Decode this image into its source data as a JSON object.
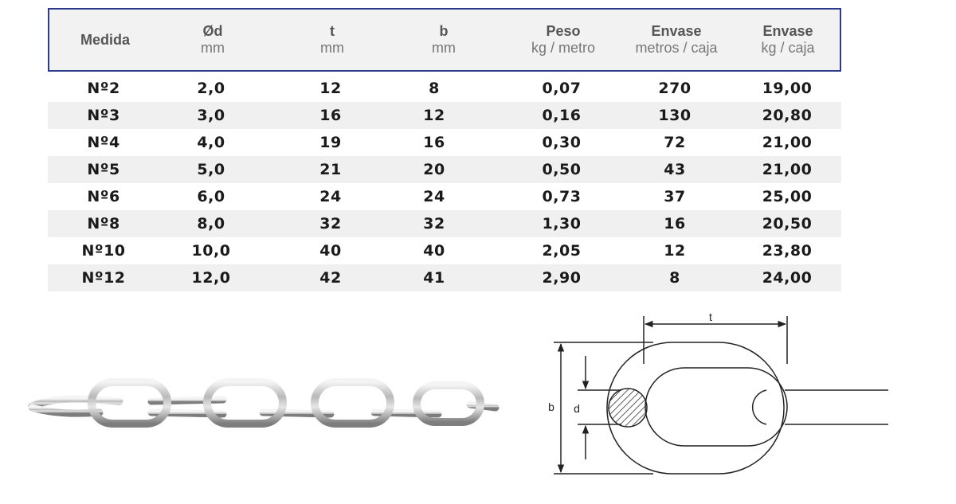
{
  "table": {
    "headers": [
      {
        "main": "Medida",
        "unit": ""
      },
      {
        "main": "Ød",
        "unit": "mm"
      },
      {
        "main": "t",
        "unit": "mm"
      },
      {
        "main": "b",
        "unit": "mm"
      },
      {
        "main": "Peso",
        "unit": "kg / metro"
      },
      {
        "main": "Envase",
        "unit": "metros / caja"
      },
      {
        "main": "Envase",
        "unit": "kg / caja"
      }
    ],
    "rows": [
      [
        "Nº2",
        "2,0",
        "12",
        "8",
        "0,07",
        "270",
        "19,00"
      ],
      [
        "Nº3",
        "3,0",
        "16",
        "12",
        "0,16",
        "130",
        "20,80"
      ],
      [
        "Nº4",
        "4,0",
        "19",
        "16",
        "0,30",
        "72",
        "21,00"
      ],
      [
        "Nº5",
        "5,0",
        "21",
        "20",
        "0,50",
        "43",
        "21,00"
      ],
      [
        "Nº6",
        "6,0",
        "24",
        "24",
        "0,73",
        "37",
        "25,00"
      ],
      [
        "Nº8",
        "8,0",
        "32",
        "32",
        "1,30",
        "16",
        "20,50"
      ],
      [
        "Nº10",
        "10,0",
        "40",
        "40",
        "2,05",
        "12",
        "23,80"
      ],
      [
        "Nº12",
        "12,0",
        "42",
        "41",
        "2,90",
        "8",
        "24,00"
      ]
    ]
  },
  "diagram": {
    "label_t": "t",
    "label_b": "b",
    "label_d": "d"
  },
  "colors": {
    "header_border": "#2e3a8c",
    "header_bg": "#f2f2f2",
    "row_shade": "#f0f0f0"
  },
  "images": {
    "chain_photo": "steel-chain-photo",
    "chain_diagram": "chain-link-dimension-diagram"
  }
}
